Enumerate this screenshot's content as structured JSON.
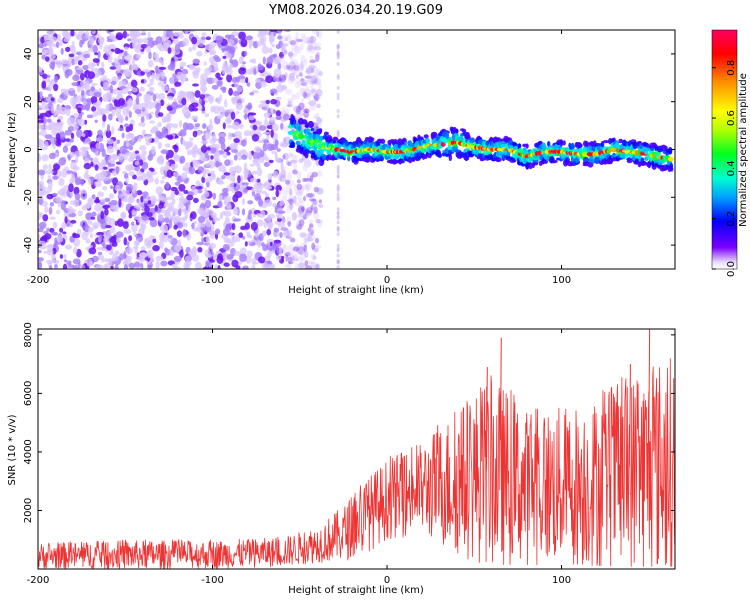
{
  "figure": {
    "title": "YM08.2026.034.20.19.G09"
  },
  "chart_data": [
    {
      "type": "heatmap",
      "name": "spectrogram",
      "xlabel": "Height of straight line (km)",
      "ylabel": "Frequency (Hz)",
      "xlim": [
        -200,
        165
      ],
      "ylim": [
        -50,
        50
      ],
      "xticks": [
        -200,
        -100,
        0,
        100
      ],
      "yticks": [
        -40,
        -20,
        0,
        20,
        40
      ],
      "noise_region_x": [
        -200,
        -50
      ],
      "signal_frequency_track": [
        {
          "x": -55,
          "y": 7
        },
        {
          "x": -50,
          "y": 6
        },
        {
          "x": -45,
          "y": 4
        },
        {
          "x": -40,
          "y": 2
        },
        {
          "x": -35,
          "y": 1
        },
        {
          "x": -30,
          "y": 0
        },
        {
          "x": -20,
          "y": -1
        },
        {
          "x": -10,
          "y": 0
        },
        {
          "x": 0,
          "y": -1
        },
        {
          "x": 10,
          "y": -1
        },
        {
          "x": 20,
          "y": 1
        },
        {
          "x": 30,
          "y": 2
        },
        {
          "x": 40,
          "y": 3
        },
        {
          "x": 50,
          "y": 1
        },
        {
          "x": 60,
          "y": 0
        },
        {
          "x": 70,
          "y": 0
        },
        {
          "x": 80,
          "y": -3
        },
        {
          "x": 90,
          "y": -1
        },
        {
          "x": 100,
          "y": -1
        },
        {
          "x": 110,
          "y": -2
        },
        {
          "x": 120,
          "y": -2
        },
        {
          "x": 130,
          "y": 0
        },
        {
          "x": 140,
          "y": -1
        },
        {
          "x": 150,
          "y": -2
        },
        {
          "x": 160,
          "y": -4
        }
      ],
      "colorbar": {
        "label": "Normalized spectral amplitude",
        "range": [
          0.0,
          0.95
        ],
        "ticks": [
          "0.0",
          "0.2",
          "0.4",
          "0.6",
          "0.8"
        ],
        "colors": [
          "#ffffff",
          "#7b00ff",
          "#0000ff",
          "#00b0ff",
          "#00ffd0",
          "#00ff00",
          "#b0ff00",
          "#ffff00",
          "#ff8000",
          "#ff0000",
          "#ff0060"
        ]
      }
    },
    {
      "type": "line",
      "name": "snr",
      "xlabel": "Height of straight line (km)",
      "ylabel": "SNR (10 * v/v)",
      "xlim": [
        -200,
        165
      ],
      "ylim": [
        0,
        8200
      ],
      "xticks": [
        -200,
        -100,
        0,
        100
      ],
      "yticks": [
        2000,
        4000,
        6000,
        8000
      ],
      "color": "#ee3333",
      "envelope": [
        {
          "x": -200,
          "lo": 50,
          "hi": 900
        },
        {
          "x": -150,
          "lo": 60,
          "hi": 1000
        },
        {
          "x": -100,
          "lo": 80,
          "hi": 1000
        },
        {
          "x": -60,
          "lo": 150,
          "hi": 1100
        },
        {
          "x": -40,
          "lo": 300,
          "hi": 1500
        },
        {
          "x": -25,
          "lo": 400,
          "hi": 2200
        },
        {
          "x": -15,
          "lo": 600,
          "hi": 3000
        },
        {
          "x": 0,
          "lo": 1200,
          "hi": 3800
        },
        {
          "x": 20,
          "lo": 1400,
          "hi": 4400
        },
        {
          "x": 40,
          "lo": 800,
          "hi": 5600
        },
        {
          "x": 60,
          "lo": 500,
          "hi": 6800
        },
        {
          "x": 80,
          "lo": 500,
          "hi": 5600
        },
        {
          "x": 100,
          "lo": 500,
          "hi": 5700
        },
        {
          "x": 120,
          "lo": 400,
          "hi": 6000
        },
        {
          "x": 140,
          "lo": 300,
          "hi": 6800
        },
        {
          "x": 160,
          "lo": 300,
          "hi": 7500
        }
      ],
      "peaks": [
        {
          "x": 65,
          "y": 7900
        },
        {
          "x": 150,
          "y": 8200
        },
        {
          "x": 57,
          "y": 6900
        },
        {
          "x": 139,
          "y": 7000
        }
      ]
    }
  ]
}
